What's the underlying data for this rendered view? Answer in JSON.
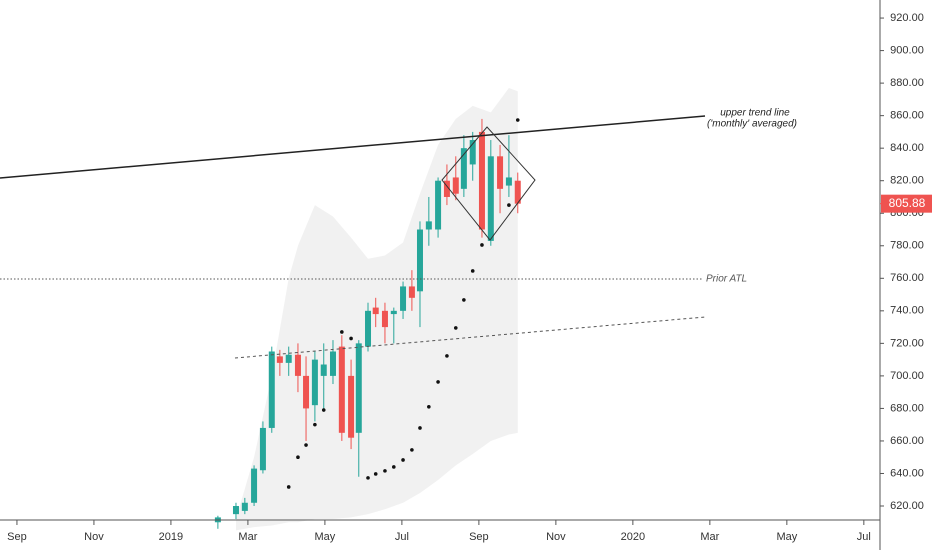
{
  "chart_data": {
    "type": "candlestick",
    "xlim": [
      -0.44,
      22.42
    ],
    "ylim": [
      611.4,
      931.1
    ],
    "xticks": [
      {
        "value": 0,
        "label": "Sep"
      },
      {
        "value": 2,
        "label": "Nov"
      },
      {
        "value": 4,
        "label": "2019"
      },
      {
        "value": 6,
        "label": "Mar"
      },
      {
        "value": 8,
        "label": "May"
      },
      {
        "value": 10,
        "label": "Jul"
      },
      {
        "value": 12,
        "label": "Sep"
      },
      {
        "value": 14,
        "label": "Nov"
      },
      {
        "value": 16,
        "label": "2020"
      },
      {
        "value": 18,
        "label": "Mar"
      },
      {
        "value": 20,
        "label": "May"
      },
      {
        "value": 22,
        "label": "Jul"
      }
    ],
    "yticks": [
      {
        "value": 620,
        "label": "620.00"
      },
      {
        "value": 640,
        "label": "640.00"
      },
      {
        "value": 660,
        "label": "660.00"
      },
      {
        "value": 680,
        "label": "680.00"
      },
      {
        "value": 700,
        "label": "700.00"
      },
      {
        "value": 720,
        "label": "720.00"
      },
      {
        "value": 740,
        "label": "740.00"
      },
      {
        "value": 760,
        "label": "760.00"
      },
      {
        "value": 780,
        "label": "780.00"
      },
      {
        "value": 800,
        "label": "800.00"
      },
      {
        "value": 820,
        "label": "820.00"
      },
      {
        "value": 840,
        "label": "840.00"
      },
      {
        "value": 860,
        "label": "860.00"
      },
      {
        "value": 880,
        "label": "880.00"
      },
      {
        "value": 900,
        "label": "900.00"
      },
      {
        "value": 920,
        "label": "920.00"
      }
    ],
    "up_color": "#26a69a",
    "down_color": "#ef5350",
    "candles": {
      "x": [
        5.22,
        5.69,
        5.92,
        6.16,
        6.39,
        6.62,
        6.83,
        7.06,
        7.3,
        7.51,
        7.74,
        7.97,
        8.21,
        8.44,
        8.68,
        8.88,
        9.12,
        9.32,
        9.56,
        9.79,
        10.03,
        10.26,
        10.47,
        10.7,
        10.94,
        11.17,
        11.4,
        11.61,
        11.84,
        12.08,
        12.31,
        12.55,
        12.78,
        13.01
      ],
      "open": [
        610,
        615,
        617,
        622,
        642,
        668,
        712,
        708,
        713,
        700,
        682,
        700,
        700,
        718,
        700,
        665,
        718,
        742,
        740,
        738,
        740,
        755,
        752,
        790,
        790,
        820,
        822,
        815,
        830,
        850,
        783,
        835,
        817,
        820
      ],
      "close": [
        613,
        620,
        622,
        643,
        668,
        715,
        708,
        713,
        700,
        680,
        710,
        707,
        715,
        665,
        662,
        720,
        740,
        738,
        730,
        740,
        755,
        748,
        790,
        795,
        820,
        810,
        812,
        840,
        845,
        790,
        835,
        815,
        822,
        805.88
      ],
      "high": [
        614,
        622,
        625,
        645,
        672,
        718,
        716,
        718,
        720,
        712,
        715,
        720,
        722,
        725,
        710,
        722,
        745,
        748,
        745,
        742,
        758,
        765,
        795,
        810,
        822,
        830,
        835,
        848,
        850,
        858,
        845,
        842,
        848,
        825
      ],
      "low": [
        606,
        612,
        615,
        620,
        640,
        665,
        700,
        700,
        690,
        660,
        672,
        678,
        695,
        660,
        655,
        638,
        715,
        730,
        720,
        720,
        735,
        740,
        730,
        780,
        785,
        805,
        808,
        810,
        820,
        785,
        780,
        800,
        810,
        800
      ]
    },
    "band": {
      "x": [
        5.69,
        6.16,
        6.62,
        7.06,
        7.3,
        7.74,
        8.21,
        8.68,
        9.12,
        9.56,
        10.03,
        10.47,
        10.94,
        11.4,
        11.84,
        12.31,
        12.78,
        13.01
      ],
      "upper": [
        612,
        650,
        700,
        760,
        780,
        805,
        798,
        785,
        772,
        774,
        782,
        812,
        842,
        858,
        866,
        862,
        877,
        875
      ],
      "lower": [
        605,
        607,
        608,
        610,
        610,
        612,
        612,
        613,
        615,
        618,
        622,
        628,
        636,
        645,
        652,
        660,
        664,
        665
      ]
    },
    "sar": {
      "x": [
        7.06,
        7.3,
        7.51,
        7.74,
        7.97,
        8.44,
        8.68,
        9.12,
        9.32,
        9.56,
        9.79,
        10.03,
        10.26,
        10.47,
        10.7,
        10.94,
        11.17,
        11.4,
        11.61,
        11.84,
        12.08,
        12.78,
        13.01
      ],
      "values": [
        631.7,
        650,
        657.5,
        670,
        679,
        727,
        723,
        637.3,
        639.7,
        641.6,
        644,
        648.3,
        654.5,
        668,
        681,
        696.3,
        712.3,
        729.5,
        746.7,
        764.5,
        780.5,
        805,
        857.3
      ]
    },
    "last_price": 805.88,
    "annotations": {
      "trend_line_1": "upper trend line",
      "trend_line_2": "('monthly' averaged)",
      "prior_atl": "Prior ATL"
    }
  }
}
